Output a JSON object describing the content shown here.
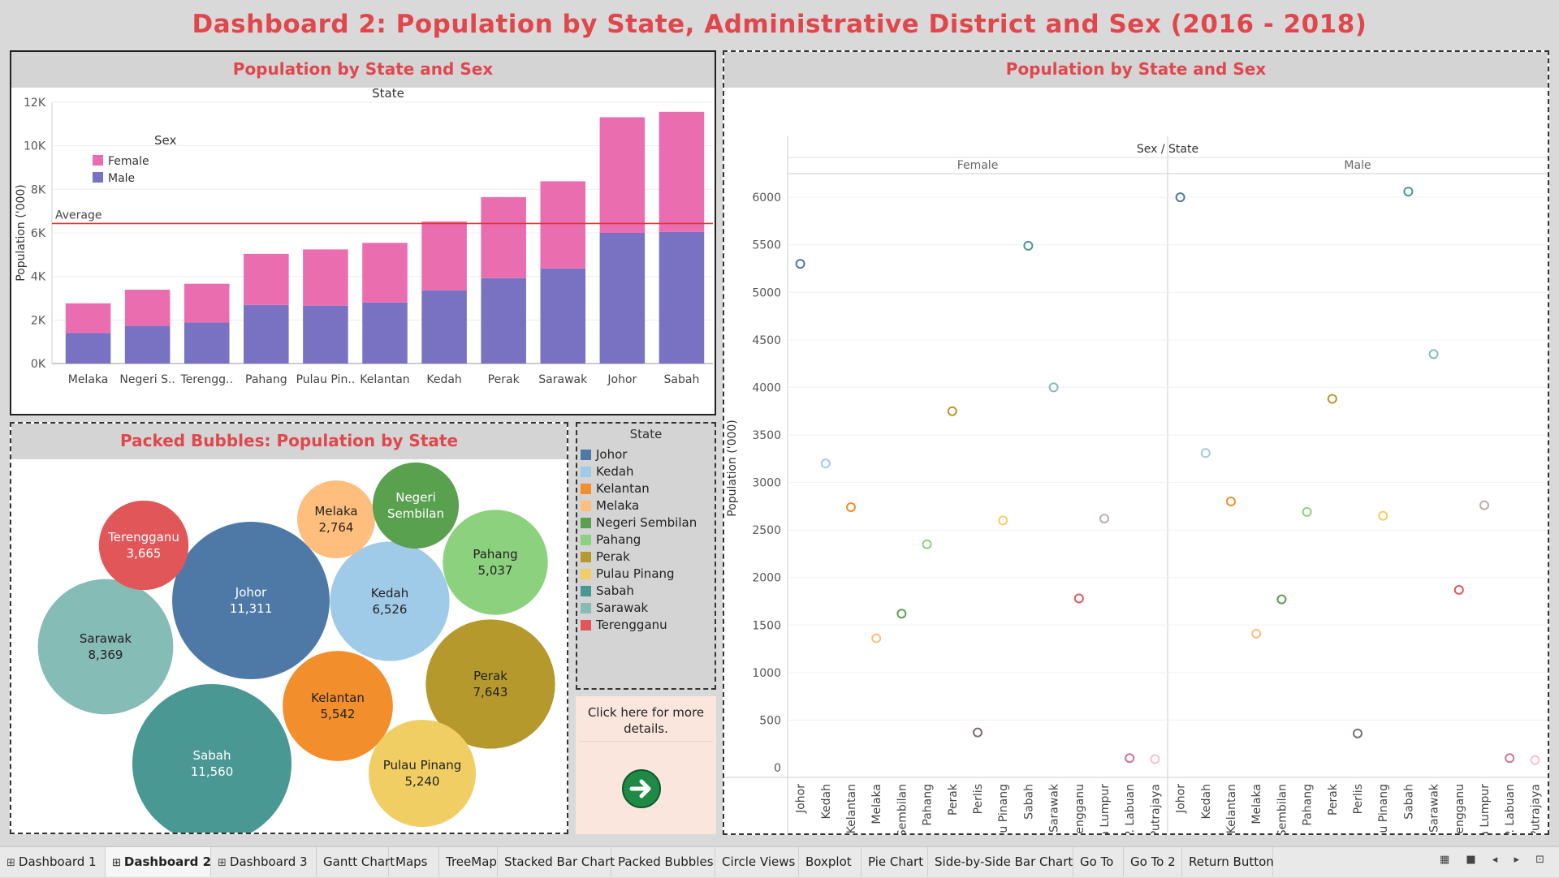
{
  "title": "Dashboard 2: Population by State, Administrative District and Sex (2016 - 2018)",
  "bar_panel": {
    "title": "Population by State and Sex",
    "column_header": "State",
    "ylabel": "Population ('000)",
    "legend_title": "Sex",
    "legend": [
      {
        "label": "Female",
        "color": "#ea6db0"
      },
      {
        "label": "Male",
        "color": "#7972c2"
      }
    ],
    "average_label": "Average",
    "y_ticks": [
      "0K",
      "2K",
      "4K",
      "6K",
      "8K",
      "10K",
      "12K"
    ]
  },
  "scatter_panel": {
    "title": "Population by State and Sex",
    "column_header": "Sex / State",
    "ylabel": "Population ('000)",
    "panes": [
      "Female",
      "Male"
    ],
    "y_ticks": [
      "0",
      "500",
      "1000",
      "1500",
      "2000",
      "2500",
      "3000",
      "3500",
      "4000",
      "4500",
      "5000",
      "5500",
      "6000"
    ]
  },
  "bubble_panel": {
    "title": "Packed Bubbles: Population by State"
  },
  "legend_panel": {
    "title": "State",
    "items": [
      {
        "label": "Johor",
        "color": "#4e79a7"
      },
      {
        "label": "Kedah",
        "color": "#a0cbe8"
      },
      {
        "label": "Kelantan",
        "color": "#f28e2b"
      },
      {
        "label": "Melaka",
        "color": "#ffbe7d"
      },
      {
        "label": "Negeri Sembilan",
        "color": "#59a14f"
      },
      {
        "label": "Pahang",
        "color": "#8cd17d"
      },
      {
        "label": "Perak",
        "color": "#b6992d"
      },
      {
        "label": "Pulau Pinang",
        "color": "#f1ce63"
      },
      {
        "label": "Sabah",
        "color": "#499894"
      },
      {
        "label": "Sarawak",
        "color": "#86bcb6"
      },
      {
        "label": "Terengganu",
        "color": "#e15759"
      }
    ]
  },
  "details_panel": {
    "text_line1": "Click here for more",
    "text_line2": "details.",
    "arrow_icon": "arrow-right-icon"
  },
  "tabs": [
    {
      "label": "Dashboard 1",
      "grid": true,
      "active": false
    },
    {
      "label": "Dashboard 2",
      "grid": true,
      "active": true
    },
    {
      "label": "Dashboard 3",
      "grid": true,
      "active": false
    },
    {
      "label": "Gantt Chart",
      "grid": false,
      "active": false
    },
    {
      "label": "Maps",
      "grid": false,
      "active": false
    },
    {
      "label": "TreeMap",
      "grid": false,
      "active": false
    },
    {
      "label": "Stacked Bar Chart",
      "grid": false,
      "active": false
    },
    {
      "label": "Packed Bubbles",
      "grid": false,
      "active": false
    },
    {
      "label": "Circle Views",
      "grid": false,
      "active": false
    },
    {
      "label": "Boxplot",
      "grid": false,
      "active": false
    },
    {
      "label": "Pie Chart",
      "grid": false,
      "active": false
    },
    {
      "label": "Side-by-Side Bar Chart",
      "grid": false,
      "active": false
    },
    {
      "label": "Go To",
      "grid": false,
      "active": false
    },
    {
      "label": "Go To 2",
      "grid": false,
      "active": false
    },
    {
      "label": "Return Button",
      "grid": false,
      "active": false
    }
  ],
  "chart_data": [
    {
      "type": "bar",
      "stacked": true,
      "title": "Population by State and Sex",
      "xlabel": "State",
      "ylabel": "Population ('000)",
      "categories": [
        "Melaka",
        "Negeri S..",
        "Terengg..",
        "Pahang",
        "Pulau Pin..",
        "Kelantan",
        "Kedah",
        "Perak",
        "Sarawak",
        "Johor",
        "Sabah"
      ],
      "series": [
        {
          "name": "Male",
          "values": [
            1400,
            1730,
            1880,
            2690,
            2660,
            2800,
            3360,
            3920,
            4370,
            6000,
            6040
          ]
        },
        {
          "name": "Female",
          "values": [
            1364,
            1660,
            1785,
            2347,
            2580,
            2742,
            3166,
            3723,
            3999,
            5311,
            5520
          ]
        }
      ],
      "average": 6430,
      "ylim": [
        0,
        12000
      ],
      "legend_position": "top-left"
    },
    {
      "type": "scatter",
      "title": "Population by State and Sex",
      "ylabel": "Population ('000)",
      "categories": [
        "Johor",
        "Kedah",
        "Kelantan",
        "Melaka",
        "Negeri Sembilan",
        "Pahang",
        "Perak",
        "Perlis",
        "Pulau Pinang",
        "Sabah",
        "Sarawak",
        "Terengganu",
        "W.P. Kuala Lumpur",
        "W.P. Labuan",
        "W.P. Putrajaya"
      ],
      "colors": [
        "#4e79a7",
        "#a0cbe8",
        "#f28e2b",
        "#ffbe7d",
        "#59a14f",
        "#8cd17d",
        "#b6992d",
        "#79706e",
        "#f1ce63",
        "#499894",
        "#86bcb6",
        "#e15759",
        "#bab0ac",
        "#d37295",
        "#fabfd2"
      ],
      "series": [
        {
          "name": "Female",
          "values": [
            5300,
            3200,
            2740,
            1360,
            1620,
            2350,
            3750,
            370,
            2600,
            5490,
            4000,
            1780,
            2620,
            100,
            90
          ]
        },
        {
          "name": "Male",
          "values": [
            6000,
            3310,
            2800,
            1410,
            1770,
            2690,
            3880,
            360,
            2650,
            6060,
            4350,
            1870,
            2760,
            100,
            80
          ]
        }
      ],
      "ylim": [
        0,
        6300
      ]
    },
    {
      "type": "bubble",
      "title": "Packed Bubbles: Population by State",
      "bubbles": [
        {
          "label": "Sabah",
          "value": "11,560",
          "num": 11560,
          "color": "#499894",
          "light": true
        },
        {
          "label": "Johor",
          "value": "11,311",
          "num": 11311,
          "color": "#4e79a7",
          "light": true
        },
        {
          "label": "Sarawak",
          "value": "8,369",
          "num": 8369,
          "color": "#86bcb6",
          "light": false
        },
        {
          "label": "Perak",
          "value": "7,643",
          "num": 7643,
          "color": "#b6992d",
          "light": false
        },
        {
          "label": "Kedah",
          "value": "6,526",
          "num": 6526,
          "color": "#a0cbe8",
          "light": false
        },
        {
          "label": "Kelantan",
          "value": "5,542",
          "num": 5542,
          "color": "#f28e2b",
          "light": false
        },
        {
          "label": "Pulau Pinang",
          "value": "5,240",
          "num": 5240,
          "color": "#f1ce63",
          "light": false
        },
        {
          "label": "Pahang",
          "value": "5,037",
          "num": 5037,
          "color": "#8cd17d",
          "light": false
        },
        {
          "label": "Terengganu",
          "value": "3,665",
          "num": 3665,
          "color": "#e15759",
          "light": true
        },
        {
          "label": "Melaka",
          "value": "2,764",
          "num": 2764,
          "color": "#ffbe7d",
          "light": false
        },
        {
          "label": "Negeri Sembilan",
          "label_lines": [
            "Negeri",
            "Sembilan"
          ],
          "value": "",
          "num": 3390,
          "color": "#59a14f",
          "light": true
        }
      ]
    }
  ]
}
